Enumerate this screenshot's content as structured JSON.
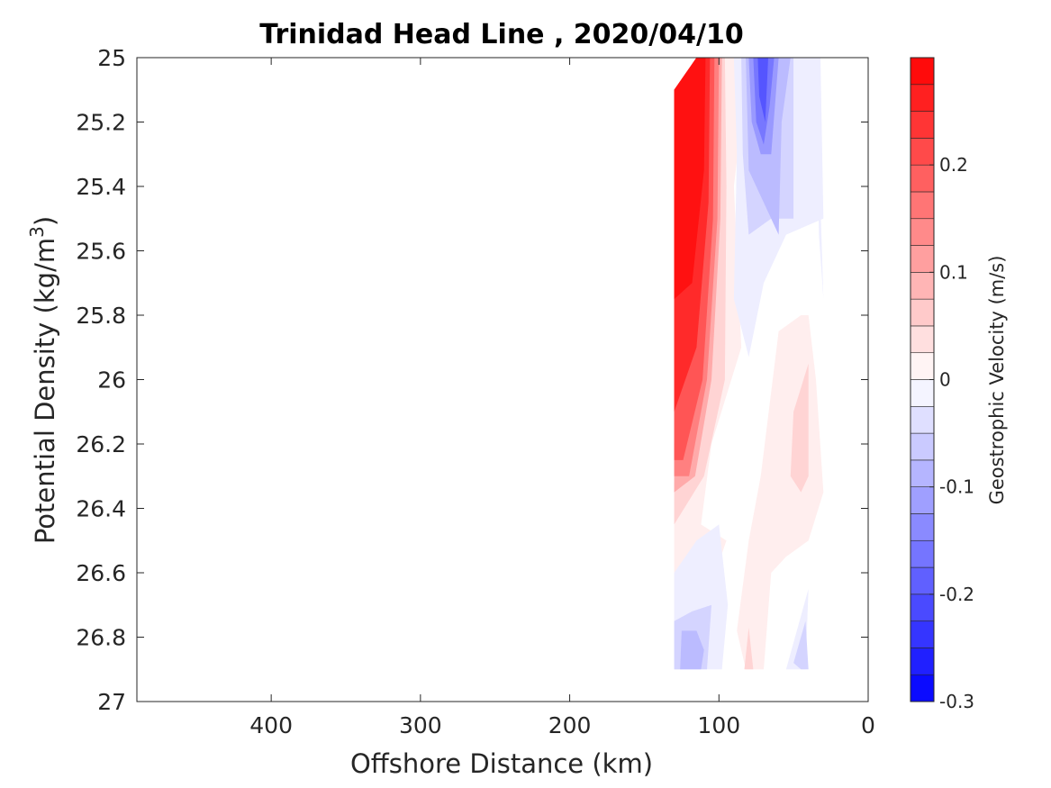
{
  "chart_data": {
    "type": "contour",
    "title": "Trinidad Head Line , 2020/04/10",
    "xlabel": "Offshore Distance (km)",
    "ylabel_main": "Potential Density (kg/m",
    "ylabel_sup": "3",
    "ylabel_end": ")",
    "xlim": [
      490,
      0
    ],
    "x_reversed": true,
    "ylim": [
      25,
      27
    ],
    "y_reversed": true,
    "x_ticks": [
      400,
      300,
      200,
      100,
      0
    ],
    "x_tick_labels": [
      "400",
      "300",
      "200",
      "100",
      "0"
    ],
    "y_ticks": [
      25,
      25.2,
      25.4,
      25.6,
      25.8,
      26,
      26.2,
      26.4,
      26.6,
      26.8,
      27
    ],
    "y_tick_labels": [
      "25",
      "25.2",
      "25.4",
      "25.6",
      "25.8",
      "26",
      "26.2",
      "26.4",
      "26.6",
      "26.8",
      "27"
    ],
    "colorbar": {
      "label": "Geostrophic Velocity (m/s)",
      "range": [
        -0.3,
        0.3
      ],
      "ticks": [
        -0.3,
        -0.2,
        -0.1,
        0,
        0.1,
        0.2
      ],
      "tick_labels": [
        "-0.3",
        "-0.2",
        "-0.1",
        "0",
        "0.1",
        "0.2"
      ],
      "levels": 24
    },
    "contours": [
      {
        "value": 0.02,
        "points": [
          [
            130,
            25.1
          ],
          [
            115,
            25.0
          ],
          [
            80,
            25.0
          ],
          [
            90,
            25.4
          ],
          [
            85,
            25.9
          ],
          [
            105,
            26.2
          ],
          [
            112,
            26.45
          ],
          [
            95,
            26.5
          ],
          [
            125,
            26.9
          ],
          [
            130,
            26.9
          ]
        ]
      },
      {
        "value": 0.05,
        "points": [
          [
            130,
            25.1
          ],
          [
            115,
            25.0
          ],
          [
            96,
            25.0
          ],
          [
            95,
            25.4
          ],
          [
            96,
            26.0
          ],
          [
            110,
            26.3
          ],
          [
            130,
            26.45
          ]
        ]
      },
      {
        "value": 0.1,
        "points": [
          [
            130,
            25.1
          ],
          [
            115,
            25.0
          ],
          [
            98,
            25.0
          ],
          [
            99,
            25.5
          ],
          [
            105,
            26.0
          ],
          [
            116,
            26.3
          ],
          [
            130,
            26.35
          ]
        ]
      },
      {
        "value": 0.15,
        "points": [
          [
            130,
            25.1
          ],
          [
            115,
            25.0
          ],
          [
            100,
            25.0
          ],
          [
            101,
            25.5
          ],
          [
            108,
            26.0
          ],
          [
            120,
            26.3
          ],
          [
            130,
            26.3
          ]
        ]
      },
      {
        "value": 0.2,
        "points": [
          [
            130,
            25.1
          ],
          [
            115,
            25.0
          ],
          [
            103,
            25.0
          ],
          [
            104,
            25.5
          ],
          [
            111,
            26.0
          ],
          [
            124,
            26.25
          ],
          [
            130,
            26.25
          ]
        ]
      },
      {
        "value": 0.25,
        "points": [
          [
            130,
            25.1
          ],
          [
            115,
            25.0
          ],
          [
            106,
            25.0
          ],
          [
            107,
            25.45
          ],
          [
            115,
            25.9
          ],
          [
            130,
            26.1
          ]
        ]
      },
      {
        "value": 0.28,
        "points": [
          [
            130,
            25.1
          ],
          [
            115,
            25.0
          ],
          [
            109,
            25.0
          ],
          [
            110,
            25.35
          ],
          [
            118,
            25.7
          ],
          [
            130,
            25.75
          ]
        ]
      },
      {
        "value": -0.02,
        "points": [
          [
            90,
            25.0
          ],
          [
            88,
            25.3
          ],
          [
            90,
            25.75
          ],
          [
            80,
            25.93
          ],
          [
            70,
            25.7
          ],
          [
            55,
            25.55
          ],
          [
            30,
            25.5
          ],
          [
            32,
            25.0
          ]
        ]
      },
      {
        "value": -0.05,
        "points": [
          [
            85,
            25.0
          ],
          [
            84,
            25.3
          ],
          [
            80,
            25.55
          ],
          [
            65,
            25.5
          ],
          [
            50,
            25.5
          ],
          [
            50,
            25.0
          ]
        ]
      },
      {
        "value": -0.08,
        "points": [
          [
            82,
            25.0
          ],
          [
            80,
            25.35
          ],
          [
            70,
            25.45
          ],
          [
            60,
            25.55
          ],
          [
            58,
            25.2
          ],
          [
            52,
            25.0
          ]
        ]
      },
      {
        "value": -0.12,
        "points": [
          [
            80,
            25.0
          ],
          [
            78,
            25.2
          ],
          [
            72,
            25.3
          ],
          [
            65,
            25.3
          ],
          [
            60,
            25.0
          ]
        ]
      },
      {
        "value": -0.16,
        "points": [
          [
            77,
            25.0
          ],
          [
            75,
            25.2
          ],
          [
            70,
            25.27
          ],
          [
            66,
            25.15
          ],
          [
            63,
            25.0
          ]
        ]
      },
      {
        "value": -0.2,
        "points": [
          [
            74,
            25.0
          ],
          [
            73,
            25.12
          ],
          [
            69,
            25.2
          ],
          [
            67,
            25.0
          ]
        ]
      },
      {
        "value": -0.02,
        "points": [
          [
            37,
            25.0
          ],
          [
            33,
            25.3
          ],
          [
            30,
            25.75
          ],
          [
            33,
            25.55
          ],
          [
            35,
            25.0
          ]
        ]
      },
      {
        "value": -0.02,
        "points": [
          [
            130,
            26.6
          ],
          [
            115,
            26.5
          ],
          [
            100,
            26.45
          ],
          [
            94,
            26.7
          ],
          [
            98,
            26.9
          ],
          [
            130,
            26.9
          ]
        ]
      },
      {
        "value": -0.05,
        "points": [
          [
            130,
            26.75
          ],
          [
            118,
            26.72
          ],
          [
            105,
            26.7
          ],
          [
            108,
            26.9
          ],
          [
            130,
            26.9
          ]
        ]
      },
      {
        "value": -0.08,
        "points": [
          [
            125,
            26.78
          ],
          [
            115,
            26.78
          ],
          [
            110,
            26.84
          ],
          [
            112,
            26.9
          ],
          [
            126,
            26.9
          ]
        ]
      },
      {
        "value": -0.02,
        "points": [
          [
            40,
            26.65
          ],
          [
            52,
            26.85
          ],
          [
            55,
            26.9
          ],
          [
            42,
            26.9
          ]
        ]
      },
      {
        "value": -0.05,
        "points": [
          [
            42,
            26.75
          ],
          [
            50,
            26.88
          ],
          [
            45,
            26.9
          ],
          [
            40,
            26.9
          ]
        ]
      },
      {
        "value": 0.02,
        "points": [
          [
            45,
            25.8
          ],
          [
            60,
            25.85
          ],
          [
            72,
            26.3
          ],
          [
            80,
            26.5
          ],
          [
            88,
            26.78
          ],
          [
            82,
            26.9
          ],
          [
            70,
            26.9
          ],
          [
            65,
            26.6
          ],
          [
            55,
            26.55
          ],
          [
            40,
            26.5
          ],
          [
            30,
            26.35
          ],
          [
            35,
            26.0
          ],
          [
            40,
            25.8
          ]
        ]
      },
      {
        "value": 0.05,
        "points": [
          [
            40,
            25.95
          ],
          [
            50,
            26.1
          ],
          [
            52,
            26.3
          ],
          [
            45,
            26.35
          ],
          [
            40,
            26.3
          ]
        ]
      },
      {
        "value": 0.05,
        "points": [
          [
            80,
            26.77
          ],
          [
            83,
            26.9
          ],
          [
            77,
            26.9
          ]
        ]
      }
    ]
  }
}
